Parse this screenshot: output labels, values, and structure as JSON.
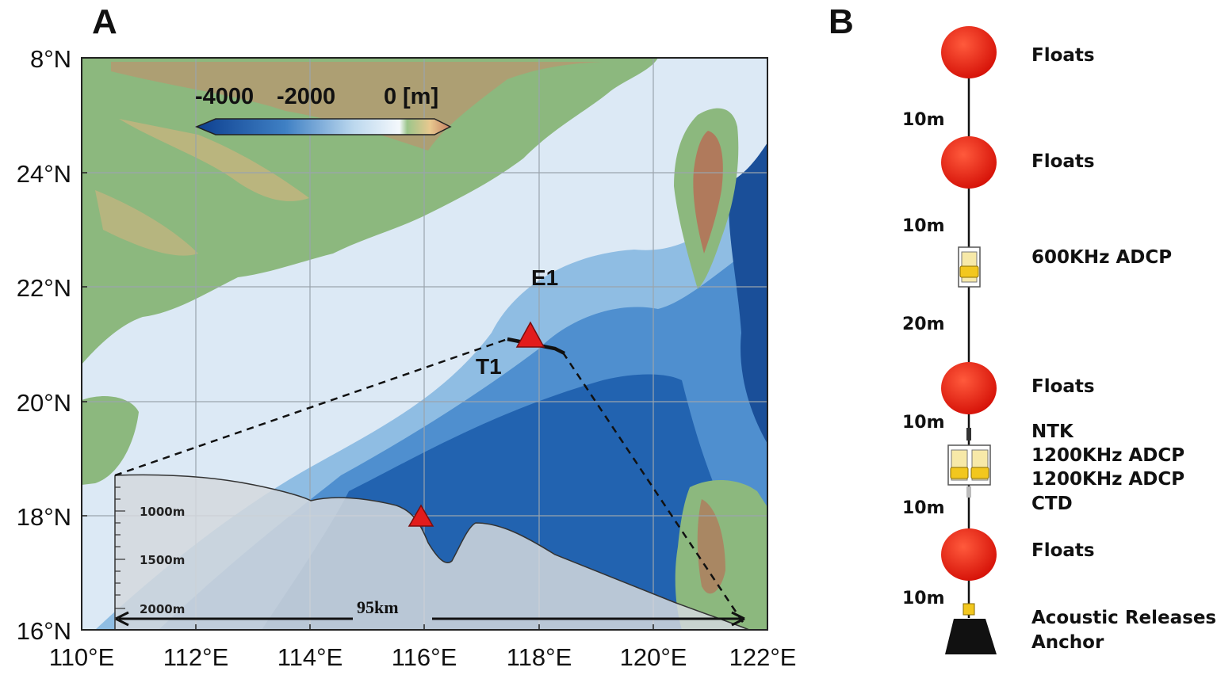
{
  "panels": {
    "a": "A",
    "b": "B"
  },
  "map": {
    "lat_labels": [
      "8°N",
      "24°N",
      "22°N",
      "20°N",
      "18°N",
      "16°N"
    ],
    "lon_labels": [
      "110°E",
      "112°E",
      "114°E",
      "116°E",
      "118°E",
      "120°E",
      "122°E"
    ],
    "colorbar": {
      "ticks": [
        "-4000",
        "-2000",
        "0"
      ],
      "unit": "[m]"
    },
    "sites": {
      "e1": "E1",
      "t1": "T1"
    },
    "inset": {
      "depths": [
        "1000m",
        "1500m",
        "2000m"
      ],
      "distance": "95km"
    },
    "colors": {
      "shelf": "#dce8f4",
      "deep": "#1f5fa8",
      "land": "#8cb87e",
      "mountain": "#c98a6a",
      "marker": "#e21c1c"
    }
  },
  "mooring": {
    "items": [
      {
        "label": "Floats"
      },
      {
        "label": "Floats"
      },
      {
        "label": "600KHz ADCP"
      },
      {
        "label": "Floats"
      },
      {
        "label": "NTK"
      },
      {
        "label": "1200KHz ADCP"
      },
      {
        "label": "1200KHz ADCP"
      },
      {
        "label": "CTD"
      },
      {
        "label": "Floats"
      },
      {
        "label": "Acoustic Releases"
      },
      {
        "label": "Anchor"
      }
    ],
    "segments": [
      "10m",
      "10m",
      "20m",
      "10m",
      "10m",
      "10m"
    ],
    "colors": {
      "float": "#e8170c",
      "adcp": "#f2c71e",
      "anchor": "#111111"
    }
  }
}
